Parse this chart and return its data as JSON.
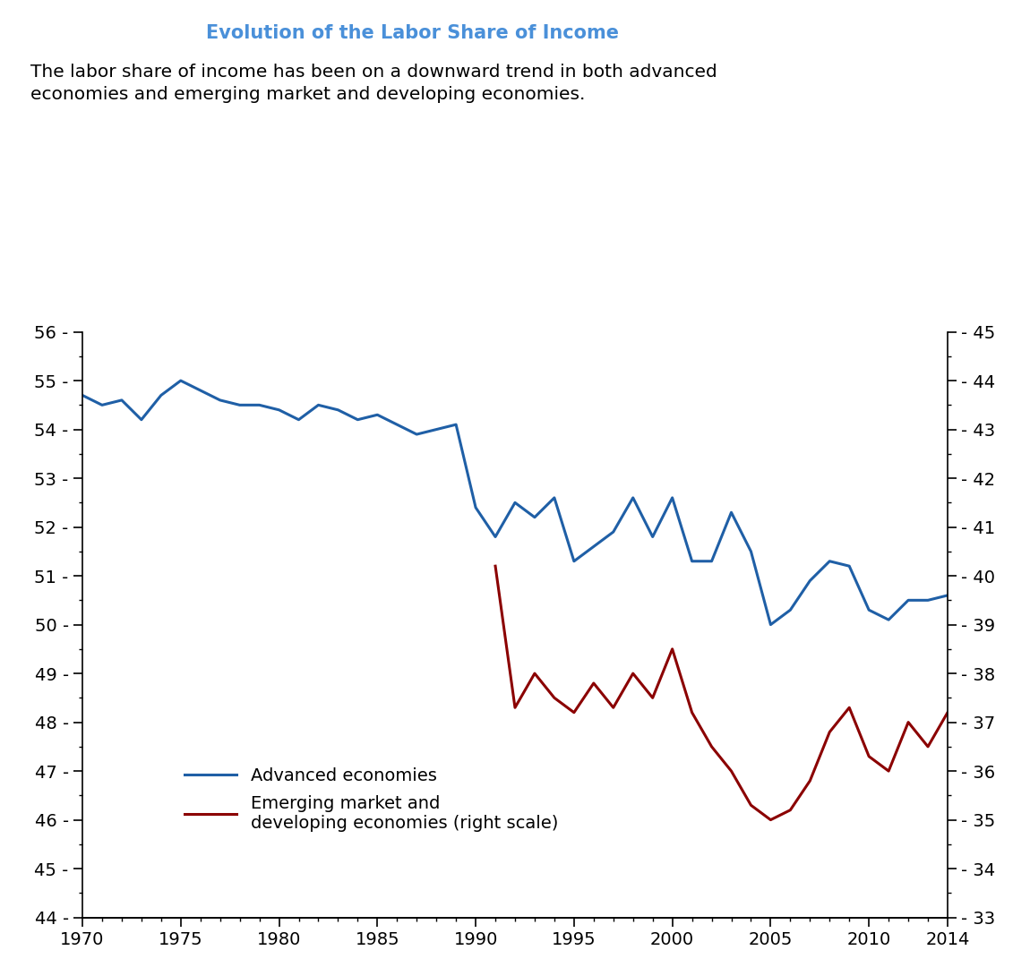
{
  "title": "Evolution of the Labor Share of Income",
  "subtitle": "The labor share of income has been on a downward trend in both advanced\neconomies and emerging market and developing economies.",
  "title_color": "#4a90d9",
  "subtitle_color": "#000000",
  "background_color": "#ffffff",
  "blue_years": [
    1970,
    1971,
    1972,
    1973,
    1974,
    1975,
    1976,
    1977,
    1978,
    1979,
    1980,
    1981,
    1982,
    1983,
    1984,
    1985,
    1986,
    1987,
    1988,
    1989,
    1990,
    1991,
    1992,
    1993,
    1994,
    1995,
    1996,
    1997,
    1998,
    1999,
    2000,
    2001,
    2002,
    2003,
    2004,
    2005,
    2006,
    2007,
    2008,
    2009,
    2010,
    2011,
    2012,
    2013,
    2014
  ],
  "blue_values": [
    54.7,
    54.5,
    54.6,
    54.2,
    54.7,
    55.0,
    54.8,
    54.6,
    54.5,
    54.5,
    54.4,
    54.2,
    54.5,
    54.4,
    54.2,
    54.3,
    54.1,
    53.9,
    54.0,
    54.1,
    52.4,
    51.8,
    52.5,
    52.2,
    52.6,
    51.3,
    51.6,
    51.9,
    52.6,
    51.8,
    52.6,
    51.3,
    51.3,
    52.3,
    51.5,
    50.0,
    50.3,
    50.9,
    51.3,
    51.2,
    50.3,
    50.1,
    50.5,
    50.5,
    50.6
  ],
  "blue_color": "#1f5fa6",
  "blue_label": "Advanced economies",
  "red_years": [
    1991,
    1992,
    1993,
    1994,
    1995,
    1996,
    1997,
    1998,
    1999,
    2000,
    2001,
    2002,
    2003,
    2004,
    2005,
    2006,
    2007,
    2008,
    2009,
    2010,
    2011,
    2012,
    2013,
    2014
  ],
  "red_values": [
    40.2,
    37.3,
    38.0,
    37.5,
    37.2,
    37.8,
    37.3,
    38.0,
    37.5,
    38.5,
    37.2,
    36.5,
    36.0,
    35.3,
    35.0,
    35.2,
    35.8,
    36.8,
    37.3,
    36.3,
    36.0,
    37.0,
    36.5,
    37.2
  ],
  "red_color": "#8b0000",
  "red_label": "Emerging market and\ndeveloping economies (right scale)",
  "left_ylim": [
    44,
    56
  ],
  "right_ylim": [
    33,
    45
  ],
  "left_yticks": [
    44,
    45,
    46,
    47,
    48,
    49,
    50,
    51,
    52,
    53,
    54,
    55,
    56
  ],
  "right_yticks": [
    33,
    34,
    35,
    36,
    37,
    38,
    39,
    40,
    41,
    42,
    43,
    44,
    45
  ],
  "xlim": [
    1970,
    2014
  ],
  "xticks": [
    1970,
    1975,
    1980,
    1985,
    1990,
    1995,
    2000,
    2005,
    2010,
    2014
  ]
}
